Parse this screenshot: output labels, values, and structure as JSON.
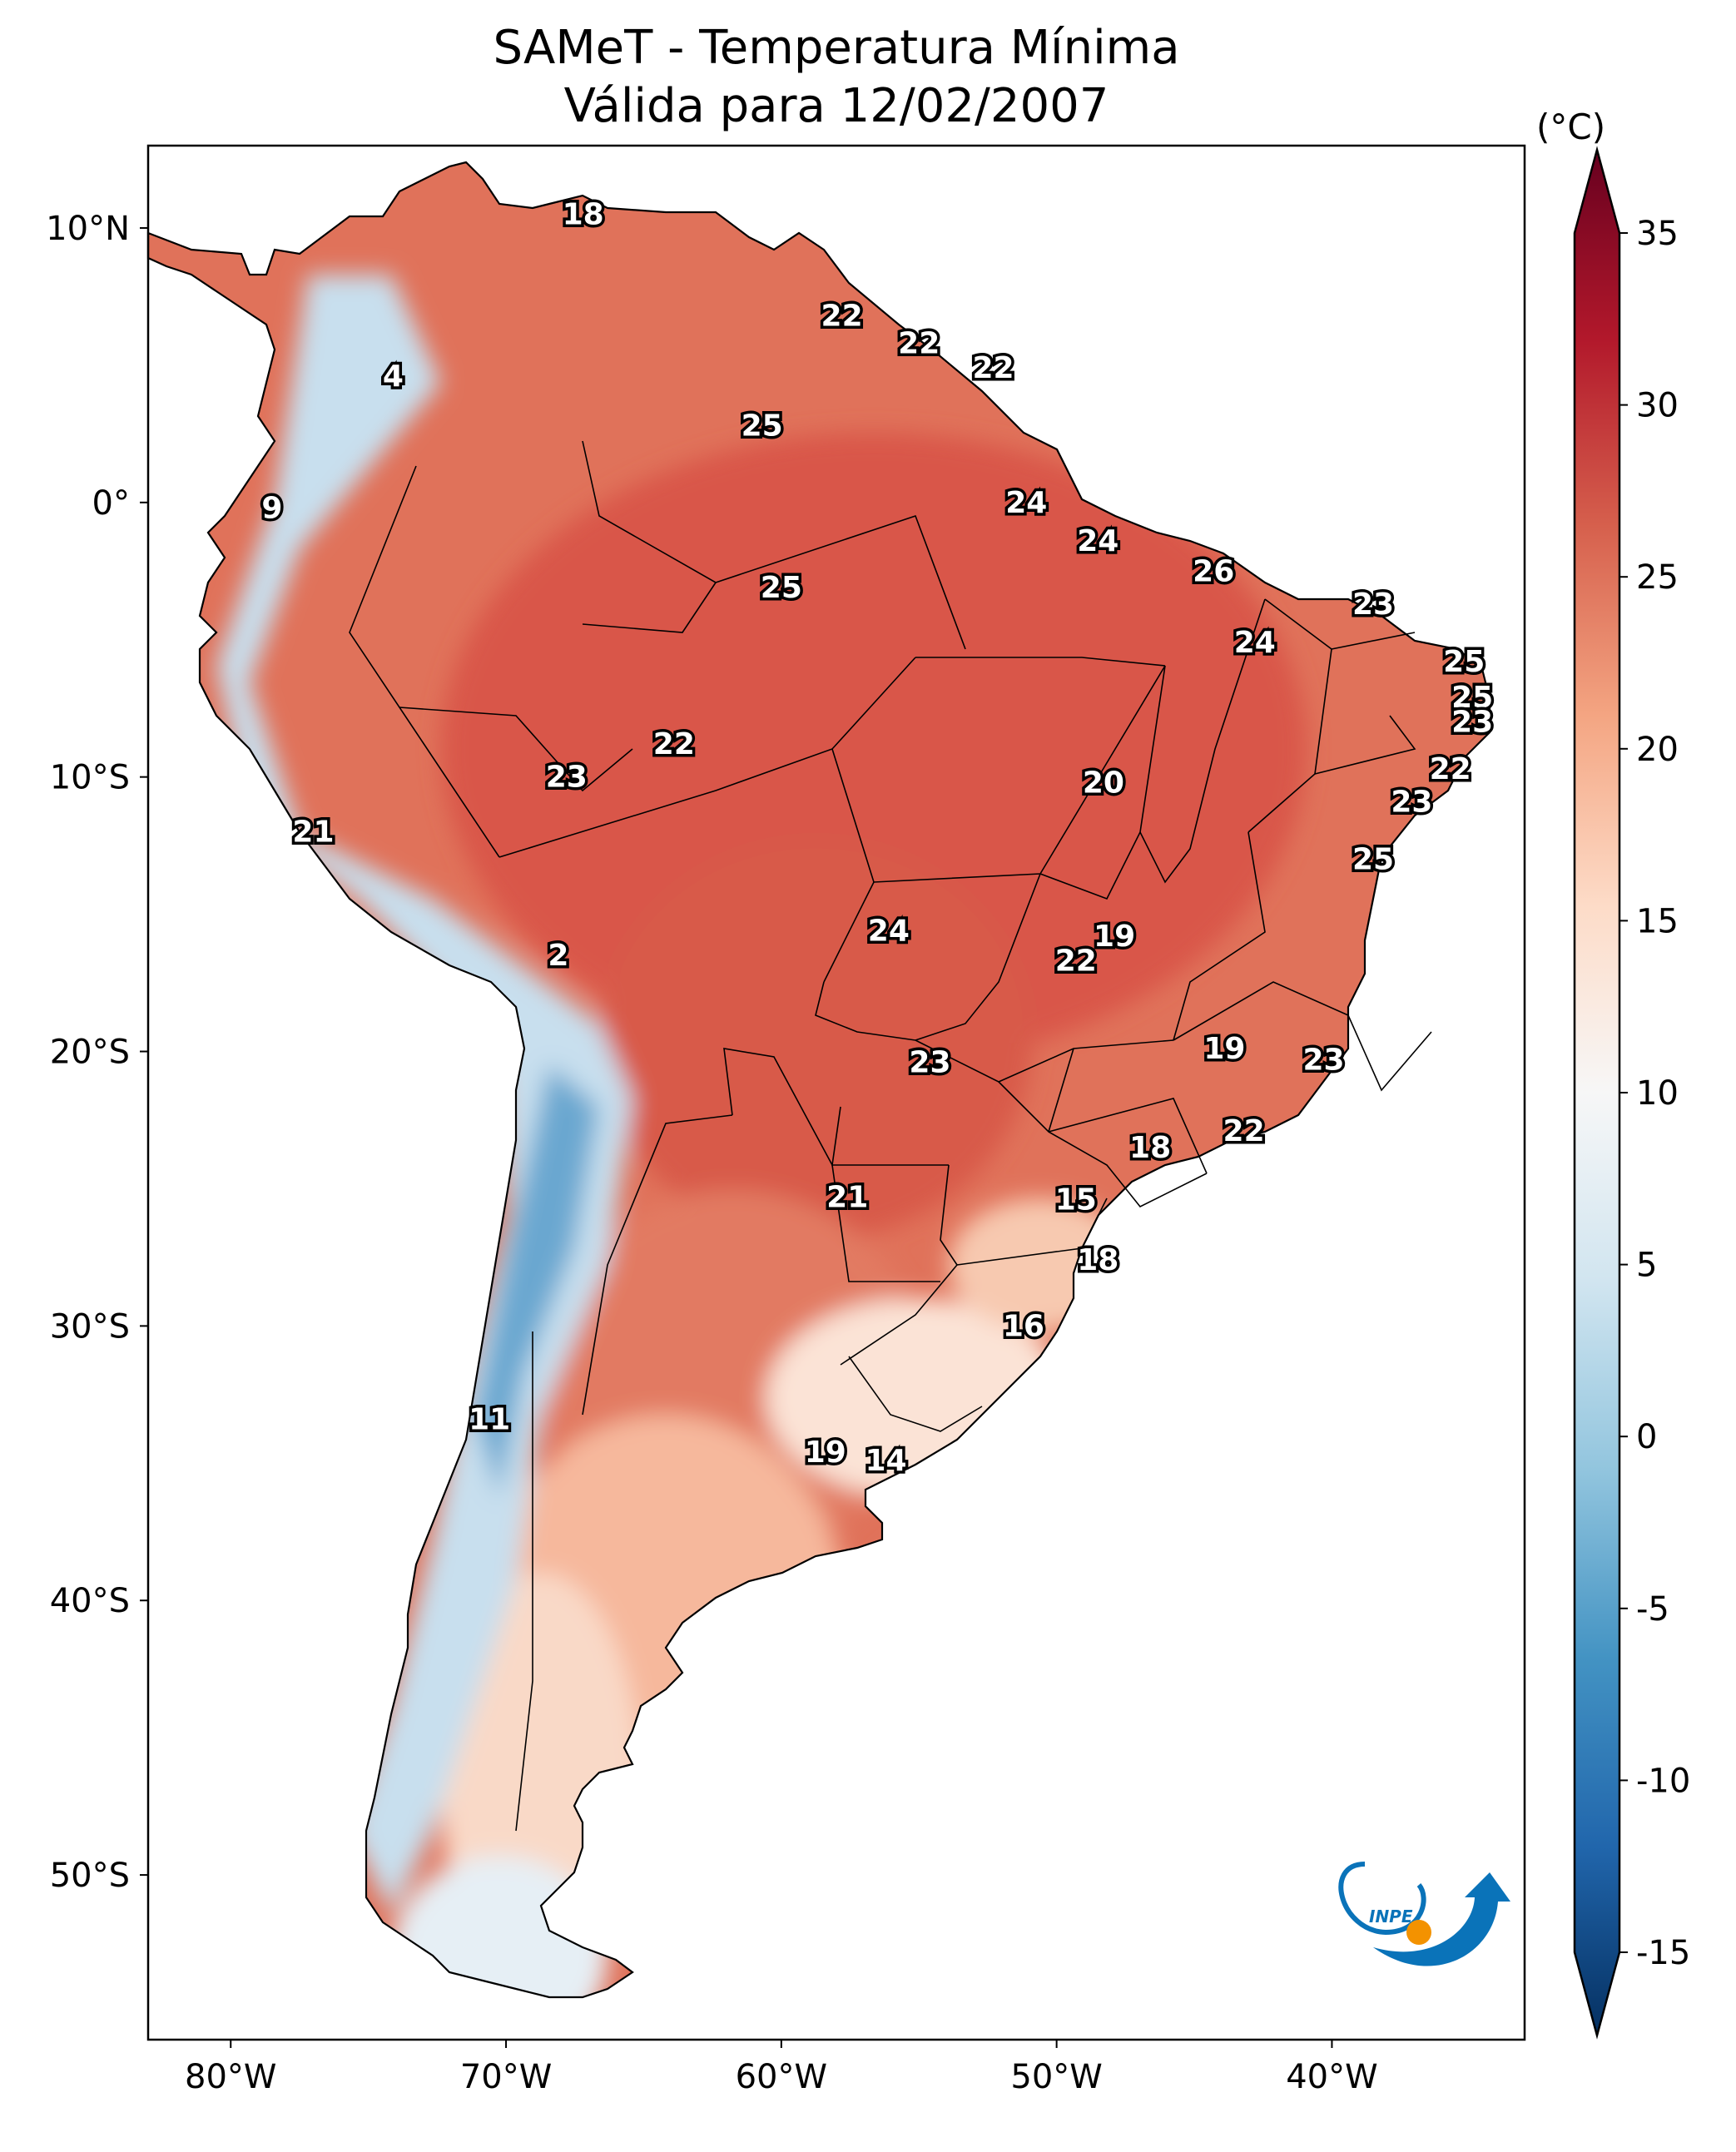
{
  "title": {
    "line1": "SAMeT - Temperatura Mínima",
    "line2": "Válida para 12/02/2007"
  },
  "map": {
    "type": "filled temperature map",
    "region": "South America",
    "lon_range": [
      -83,
      -33
    ],
    "lat_range": [
      -56,
      13
    ],
    "lat_ticks": [
      {
        "lat": 10,
        "label": "10°N"
      },
      {
        "lat": 0,
        "label": "0°"
      },
      {
        "lat": -10,
        "label": "10°S"
      },
      {
        "lat": -20,
        "label": "20°S"
      },
      {
        "lat": -30,
        "label": "30°S"
      },
      {
        "lat": -40,
        "label": "40°S"
      },
      {
        "lat": -50,
        "label": "50°S"
      }
    ],
    "lon_ticks": [
      {
        "lon": -80,
        "label": "80°W"
      },
      {
        "lon": -70,
        "label": "70°W"
      },
      {
        "lon": -60,
        "label": "60°W"
      },
      {
        "lon": -50,
        "label": "50°W"
      },
      {
        "lon": -40,
        "label": "40°W"
      }
    ],
    "city_values": [
      {
        "lon": -67.2,
        "lat": 10.5,
        "value": "18"
      },
      {
        "lon": -74.1,
        "lat": 4.6,
        "value": "4"
      },
      {
        "lon": -78.5,
        "lat": -0.2,
        "value": "9"
      },
      {
        "lon": -57.8,
        "lat": 6.8,
        "value": "22"
      },
      {
        "lon": -55.0,
        "lat": 5.8,
        "value": "22"
      },
      {
        "lon": -52.3,
        "lat": 4.9,
        "value": "22"
      },
      {
        "lon": -60.7,
        "lat": 2.8,
        "value": "25"
      },
      {
        "lon": -51.1,
        "lat": 0.0,
        "value": "24"
      },
      {
        "lon": -48.5,
        "lat": -1.4,
        "value": "24"
      },
      {
        "lon": -44.3,
        "lat": -2.5,
        "value": "26"
      },
      {
        "lon": -38.5,
        "lat": -3.7,
        "value": "23"
      },
      {
        "lon": -60.0,
        "lat": -3.1,
        "value": "25"
      },
      {
        "lon": -42.8,
        "lat": -5.1,
        "value": "24"
      },
      {
        "lon": -35.2,
        "lat": -5.8,
        "value": "25"
      },
      {
        "lon": -34.9,
        "lat": -7.1,
        "value": "25"
      },
      {
        "lon": -34.9,
        "lat": -8.0,
        "value": "23"
      },
      {
        "lon": -35.7,
        "lat": -9.7,
        "value": "22"
      },
      {
        "lon": -37.1,
        "lat": -10.9,
        "value": "23"
      },
      {
        "lon": -63.9,
        "lat": -8.8,
        "value": "22"
      },
      {
        "lon": -67.8,
        "lat": -10.0,
        "value": "23"
      },
      {
        "lon": -48.3,
        "lat": -10.2,
        "value": "20"
      },
      {
        "lon": -77.0,
        "lat": -12.0,
        "value": "21"
      },
      {
        "lon": -38.5,
        "lat": -13.0,
        "value": "25"
      },
      {
        "lon": -56.1,
        "lat": -15.6,
        "value": "24"
      },
      {
        "lon": -47.9,
        "lat": -15.8,
        "value": "19"
      },
      {
        "lon": -49.3,
        "lat": -16.7,
        "value": "22"
      },
      {
        "lon": -68.1,
        "lat": -16.5,
        "value": "2"
      },
      {
        "lon": -43.9,
        "lat": -19.9,
        "value": "19"
      },
      {
        "lon": -40.3,
        "lat": -20.3,
        "value": "23"
      },
      {
        "lon": -54.6,
        "lat": -20.4,
        "value": "23"
      },
      {
        "lon": -43.2,
        "lat": -22.9,
        "value": "22"
      },
      {
        "lon": -46.6,
        "lat": -23.5,
        "value": "18"
      },
      {
        "lon": -57.6,
        "lat": -25.3,
        "value": "21"
      },
      {
        "lon": -49.3,
        "lat": -25.4,
        "value": "15"
      },
      {
        "lon": -48.5,
        "lat": -27.6,
        "value": "18"
      },
      {
        "lon": -51.2,
        "lat": -30.0,
        "value": "16"
      },
      {
        "lon": -70.6,
        "lat": -33.4,
        "value": "11"
      },
      {
        "lon": -58.4,
        "lat": -34.6,
        "value": "19"
      },
      {
        "lon": -56.2,
        "lat": -34.9,
        "value": "14"
      }
    ]
  },
  "colorbar": {
    "unit": "(°C)",
    "min": -17.5,
    "max": 37.5,
    "tick_values": [
      35,
      30,
      25,
      20,
      15,
      10,
      5,
      0,
      -5,
      -10,
      -15
    ],
    "tick_labels": [
      "35",
      "30",
      "25",
      "20",
      "15",
      "10",
      "5",
      "0",
      "-5",
      "-10",
      "-15"
    ],
    "colors": [
      "#053061",
      "#2166ac",
      "#4393c3",
      "#92c5de",
      "#d1e5f0",
      "#f7f7f7",
      "#fddbc7",
      "#f4a582",
      "#d6604d",
      "#b2182b",
      "#67001f"
    ]
  },
  "logo": {
    "text": "INPE",
    "colors": [
      "#0a73b9",
      "#f39200"
    ]
  }
}
